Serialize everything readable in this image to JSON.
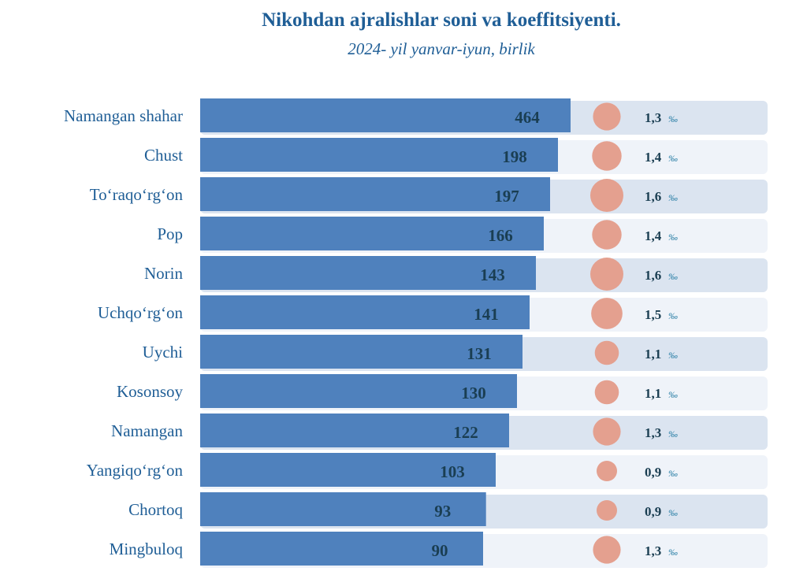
{
  "chart_data": {
    "type": "bar",
    "orientation": "horizontal",
    "title": "Nikohdan ajralishlar soni va koeffitsiyenti.",
    "subtitle": "2024- yil yanvar-iyun, birlik",
    "categories": [
      "Namangan shahar",
      "Chust",
      "To‘raqo‘rg‘on",
      "Pop",
      "Norin",
      "Uchqo‘rg‘on",
      "Uychi",
      "Kosonsoy",
      "Namangan",
      "Yangiqo‘rg‘on",
      "Chortoq",
      "Mingbuloq"
    ],
    "series": [
      {
        "name": "Nikohdan ajralishlar soni",
        "values": [
          464,
          198,
          197,
          166,
          143,
          141,
          131,
          130,
          122,
          103,
          93,
          90
        ]
      },
      {
        "name": "Koeffitsiyent",
        "values": [
          1.3,
          1.4,
          1.6,
          1.4,
          1.6,
          1.5,
          1.1,
          1.1,
          1.3,
          0.9,
          0.9,
          1.3
        ],
        "labels": [
          "1,3",
          "1,4",
          "1,6",
          "1,4",
          "1,6",
          "1,5",
          "1,1",
          "1,1",
          "1,3",
          "0,9",
          "0,9",
          "1,3"
        ],
        "unit": "‰"
      }
    ],
    "grid": false,
    "legend": "none",
    "colors": {
      "bar": "#4f81bd",
      "bubble": "#e4a08f",
      "row_dark": "#dbe4f0",
      "row_light": "#eff3f9",
      "title": "#1f5e96",
      "value_text": "#1a3e52"
    }
  }
}
